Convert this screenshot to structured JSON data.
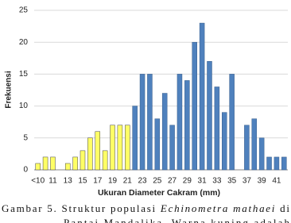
{
  "chart_data": {
    "type": "bar",
    "categories": [
      "<10",
      null,
      "11",
      null,
      "13",
      null,
      "15",
      null,
      "17",
      null,
      "19",
      null,
      "21",
      null,
      "23",
      null,
      "25",
      null,
      "27",
      null,
      "29",
      null,
      "31",
      null,
      "33",
      null,
      "35",
      null,
      "37",
      null,
      "39",
      null,
      "41",
      null
    ],
    "values": [
      1,
      2,
      2,
      0,
      1,
      2,
      3,
      5,
      6,
      3,
      7,
      7,
      7,
      10,
      15,
      15,
      8,
      12,
      7,
      15,
      14,
      20,
      23,
      17,
      13,
      9,
      15,
      0,
      7,
      8,
      5,
      2,
      2,
      2
    ],
    "colors": [
      "#ffff66",
      "#ffff66",
      "#ffff66",
      "#ffff66",
      "#ffff66",
      "#ffff66",
      "#ffff66",
      "#ffff66",
      "#ffff66",
      "#ffff66",
      "#ffff66",
      "#ffff66",
      "#ffff66",
      "#4f81bd",
      "#4f81bd",
      "#4f81bd",
      "#4f81bd",
      "#4f81bd",
      "#4f81bd",
      "#4f81bd",
      "#4f81bd",
      "#4f81bd",
      "#4f81bd",
      "#4f81bd",
      "#4f81bd",
      "#4f81bd",
      "#4f81bd",
      "#4f81bd",
      "#4f81bd",
      "#4f81bd",
      "#4f81bd",
      "#4f81bd",
      "#4f81bd",
      "#4f81bd"
    ],
    "x_label": "Ukuran Diameter Cakram (mm)",
    "y_label": "Frekuensi",
    "ylim": [
      0,
      25
    ],
    "yticks": [
      0,
      5,
      10,
      15,
      20,
      25
    ],
    "grid": true
  },
  "caption": {
    "line1": [
      "Gambar 5. Struktur populasi ",
      "Echinometra mathaei",
      " di"
    ],
    "line2": "Pantai Mandalika. Warna kuning adalah"
  }
}
